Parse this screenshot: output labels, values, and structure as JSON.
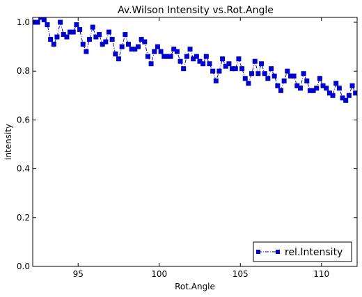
{
  "chart_data": {
    "type": "scatter",
    "title": "Av.Wilson Intensity vs.Rot.Angle",
    "xlabel": "Rot.Angle",
    "ylabel": "intensity",
    "xlim": [
      92.2,
      112.2
    ],
    "ylim": [
      0.0,
      1.02
    ],
    "x_ticks": [
      95,
      100,
      105,
      110
    ],
    "y_ticks": [
      0.0,
      0.2,
      0.4,
      0.6,
      0.8,
      1.0
    ],
    "x_tick_labels": [
      "95",
      "100",
      "105",
      "110"
    ],
    "y_tick_labels": [
      "0.0",
      "0.2",
      "0.4",
      "0.6",
      "0.8",
      "1.0"
    ],
    "grid": false,
    "legend_position": "bottom-right",
    "colors": {
      "series": "#0000cc"
    },
    "series": [
      {
        "name": "rel.Intensity",
        "marker": "square",
        "line": "dash-dot",
        "x": [
          92.3,
          92.5,
          92.7,
          92.9,
          93.1,
          93.3,
          93.5,
          93.7,
          93.9,
          94.1,
          94.3,
          94.5,
          94.7,
          94.9,
          95.1,
          95.3,
          95.5,
          95.7,
          95.9,
          96.1,
          96.3,
          96.5,
          96.7,
          96.9,
          97.1,
          97.3,
          97.5,
          97.7,
          97.9,
          98.1,
          98.3,
          98.5,
          98.7,
          98.9,
          99.1,
          99.3,
          99.5,
          99.7,
          99.9,
          100.1,
          100.3,
          100.5,
          100.7,
          100.9,
          101.1,
          101.3,
          101.5,
          101.7,
          101.9,
          102.1,
          102.3,
          102.5,
          102.7,
          102.9,
          103.1,
          103.3,
          103.5,
          103.7,
          103.9,
          104.1,
          104.3,
          104.5,
          104.7,
          104.9,
          105.1,
          105.3,
          105.5,
          105.7,
          105.9,
          106.1,
          106.3,
          106.5,
          106.7,
          106.9,
          107.1,
          107.3,
          107.5,
          107.7,
          107.9,
          108.1,
          108.3,
          108.5,
          108.7,
          108.9,
          109.1,
          109.3,
          109.5,
          109.7,
          109.9,
          110.1,
          110.3,
          110.5,
          110.7,
          110.9,
          111.1,
          111.3,
          111.5,
          111.7,
          111.9,
          112.1
        ],
        "y": [
          1.0,
          1.0,
          1.02,
          1.01,
          0.99,
          0.93,
          0.91,
          0.94,
          1.0,
          0.95,
          0.94,
          0.96,
          0.96,
          0.99,
          0.97,
          0.91,
          0.88,
          0.93,
          0.98,
          0.94,
          0.95,
          0.91,
          0.92,
          0.96,
          0.93,
          0.87,
          0.85,
          0.9,
          0.95,
          0.91,
          0.89,
          0.89,
          0.9,
          0.93,
          0.92,
          0.86,
          0.83,
          0.88,
          0.9,
          0.88,
          0.86,
          0.86,
          0.86,
          0.89,
          0.88,
          0.84,
          0.81,
          0.86,
          0.89,
          0.85,
          0.86,
          0.84,
          0.83,
          0.86,
          0.83,
          0.8,
          0.76,
          0.8,
          0.85,
          0.82,
          0.83,
          0.81,
          0.81,
          0.85,
          0.81,
          0.77,
          0.75,
          0.79,
          0.84,
          0.79,
          0.83,
          0.79,
          0.77,
          0.81,
          0.78,
          0.74,
          0.72,
          0.76,
          0.8,
          0.78,
          0.78,
          0.74,
          0.73,
          0.79,
          0.76,
          0.72,
          0.72,
          0.73,
          0.77,
          0.74,
          0.73,
          0.71,
          0.7,
          0.75,
          0.73,
          0.69,
          0.68,
          0.7,
          0.74,
          0.71
        ]
      }
    ]
  }
}
